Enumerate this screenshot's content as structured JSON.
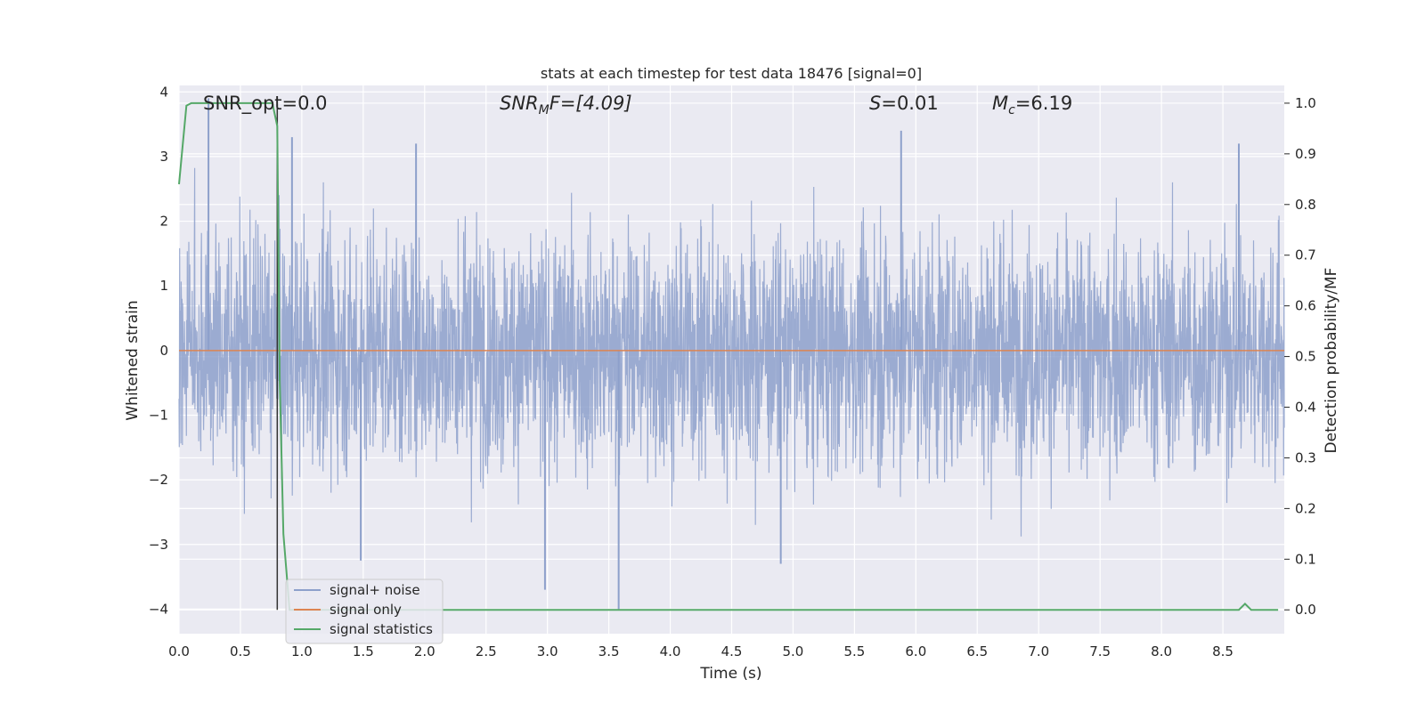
{
  "chart_data": {
    "type": "line",
    "title": "stats at each timestep for test data 18476 [signal=0]",
    "xlabel": "Time (s)",
    "ylabel": "Whitened strain",
    "y2label": "Detection probability/MF",
    "xlim": [
      0.0,
      9.0
    ],
    "ylim": [
      -4.38,
      4.1
    ],
    "y2lim": [
      -0.047,
      1.035
    ],
    "x_ticks": [
      "0.0",
      "0.5",
      "1.0",
      "1.5",
      "2.0",
      "2.5",
      "3.0",
      "3.5",
      "4.0",
      "4.5",
      "5.0",
      "5.5",
      "6.0",
      "6.5",
      "7.0",
      "7.5",
      "8.0",
      "8.5"
    ],
    "y_ticks": [
      "4",
      "3",
      "2",
      "1",
      "0",
      "−1",
      "−2",
      "−3",
      "−4"
    ],
    "y2_ticks": [
      "1.0",
      "0.9",
      "0.8",
      "0.7",
      "0.6",
      "0.5",
      "0.4",
      "0.3",
      "0.2",
      "0.1",
      "0.0"
    ],
    "grid": true,
    "legend_position": "lower-left",
    "annotations": {
      "snr_opt": "SNR_opt=0.0",
      "snr_mf_main": "SNR",
      "snr_mf_sub": "M",
      "snr_mf_rest": "F=[4.09]",
      "s_sym": "S",
      "s_rest": "=0.01",
      "mc_main": "M",
      "mc_sub": "c",
      "mc_rest": "=6.19"
    },
    "vertical_marker_x": 0.8,
    "series": [
      {
        "name": "signal+ noise",
        "color": "#8da0cb",
        "description_values": "whitened strain noise, amplitude approx +/-2 with spikes to about +/-4",
        "envelope_upper": 2.0,
        "envelope_lower": -2.0,
        "peaks": [
          [
            0.24,
            3.9
          ],
          [
            0.92,
            3.3
          ],
          [
            1.93,
            3.2
          ],
          [
            5.88,
            3.4
          ],
          [
            8.63,
            3.2
          ],
          [
            3.58,
            -4.0
          ],
          [
            2.98,
            -3.7
          ],
          [
            4.9,
            -3.3
          ],
          [
            1.48,
            -3.25
          ]
        ]
      },
      {
        "name": "signal only",
        "color": "#dd8452",
        "x": [
          0.0,
          9.0
        ],
        "y": [
          0.0,
          0.0
        ]
      },
      {
        "name": "signal statistics",
        "color": "#55a868",
        "axis": "right",
        "x": [
          0.0,
          0.06,
          0.1,
          0.15,
          0.2,
          0.3,
          0.4,
          0.5,
          0.6,
          0.7,
          0.76,
          0.8,
          0.82,
          0.85,
          0.9,
          1.0,
          2.0,
          3.0,
          4.0,
          5.0,
          6.0,
          7.0,
          8.0,
          8.58,
          8.63,
          8.68,
          8.73,
          8.8,
          8.95
        ],
        "y": [
          0.84,
          0.995,
          1.0,
          1.0,
          1.0,
          1.0,
          1.0,
          1.0,
          1.0,
          1.0,
          1.0,
          0.955,
          0.45,
          0.15,
          0.0,
          0.0,
          0.0,
          0.0,
          0.0,
          0.0,
          0.0,
          0.0,
          0.0,
          0.0,
          0.0,
          0.012,
          0.0,
          0.0,
          0.0
        ]
      }
    ]
  }
}
